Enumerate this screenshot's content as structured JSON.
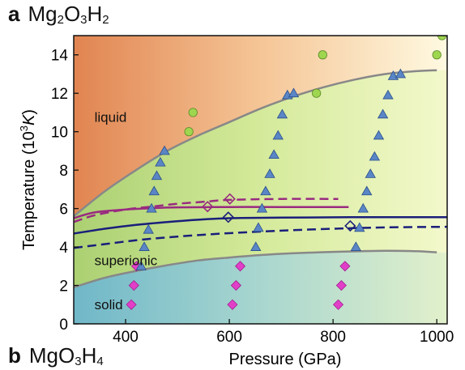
{
  "panels": {
    "a": {
      "letter": "a",
      "formula": {
        "p1": "Mg",
        "s1": "2",
        "p2": "O",
        "s2": "3",
        "p3": "H",
        "s3": "2"
      }
    },
    "b": {
      "letter": "b",
      "formula": {
        "p1": "MgO",
        "s1": "3",
        "p2": "H",
        "s2": "4"
      }
    }
  },
  "chart_data": {
    "type": "scatter",
    "title": "",
    "xlabel": "Pressure (GPa)",
    "ylabel_main": "Temperature (10",
    "ylabel_sup": "3",
    "ylabel_unit": "K",
    "ylabel_close": ")",
    "xlim": [
      300,
      1020
    ],
    "ylim": [
      0,
      15
    ],
    "xticks": [
      400,
      600,
      800,
      1000
    ],
    "yticks": [
      0,
      2,
      4,
      6,
      8,
      10,
      12,
      14
    ],
    "grid": false,
    "regions": [
      {
        "name": "liquid",
        "label": "liquid",
        "colors": [
          "#e0824e",
          "#f5c596",
          "#fffbe3"
        ]
      },
      {
        "name": "superionic",
        "label": "superionic",
        "colors": [
          "#a9cf70",
          "#d4ea9a",
          "#f4f9cd"
        ]
      },
      {
        "name": "solid",
        "label": "solid",
        "colors": [
          "#6db6c8",
          "#a8d6cf",
          "#e3f1cb"
        ]
      }
    ],
    "boundary_color": "#888888",
    "liquid_superionic_boundary": [
      [
        300,
        5.6
      ],
      [
        360,
        6.9
      ],
      [
        420,
        8.0
      ],
      [
        480,
        9.0
      ],
      [
        540,
        9.8
      ],
      [
        600,
        10.5
      ],
      [
        660,
        11.2
      ],
      [
        720,
        11.8
      ],
      [
        780,
        12.3
      ],
      [
        840,
        12.7
      ],
      [
        900,
        13.0
      ],
      [
        960,
        13.15
      ],
      [
        1000,
        13.2
      ]
    ],
    "superionic_solid_boundary": [
      [
        300,
        1.9
      ],
      [
        360,
        2.4
      ],
      [
        420,
        2.75
      ],
      [
        480,
        3.05
      ],
      [
        540,
        3.3
      ],
      [
        600,
        3.45
      ],
      [
        660,
        3.58
      ],
      [
        720,
        3.67
      ],
      [
        780,
        3.73
      ],
      [
        840,
        3.77
      ],
      [
        900,
        3.8
      ],
      [
        960,
        3.78
      ],
      [
        1000,
        3.72
      ]
    ],
    "lines": [
      {
        "name": "purple-solid",
        "color": "#992b80",
        "dash": false,
        "points": [
          [
            300,
            5.5
          ],
          [
            340,
            5.8
          ],
          [
            400,
            5.95
          ],
          [
            450,
            6.02
          ],
          [
            500,
            6.06
          ],
          [
            600,
            6.08
          ],
          [
            700,
            6.08
          ],
          [
            830,
            6.08
          ]
        ]
      },
      {
        "name": "purple-dashed",
        "color": "#992b80",
        "dash": true,
        "points": [
          [
            300,
            5.3
          ],
          [
            340,
            5.65
          ],
          [
            400,
            5.95
          ],
          [
            450,
            6.1
          ],
          [
            500,
            6.25
          ],
          [
            550,
            6.35
          ],
          [
            600,
            6.45
          ],
          [
            700,
            6.5
          ],
          [
            810,
            6.5
          ]
        ]
      },
      {
        "name": "navy-solid",
        "color": "#1a1f7a",
        "dash": false,
        "points": [
          [
            300,
            4.7
          ],
          [
            360,
            4.95
          ],
          [
            420,
            5.15
          ],
          [
            480,
            5.3
          ],
          [
            540,
            5.42
          ],
          [
            600,
            5.5
          ],
          [
            700,
            5.53
          ],
          [
            850,
            5.55
          ],
          [
            1020,
            5.55
          ]
        ]
      },
      {
        "name": "navy-dashed",
        "color": "#1a1f7a",
        "dash": true,
        "points": [
          [
            300,
            3.95
          ],
          [
            360,
            4.15
          ],
          [
            420,
            4.35
          ],
          [
            480,
            4.5
          ],
          [
            540,
            4.62
          ],
          [
            600,
            4.72
          ],
          [
            700,
            4.85
          ],
          [
            800,
            4.95
          ],
          [
            900,
            5.02
          ],
          [
            1020,
            5.05
          ]
        ]
      }
    ],
    "triangles": {
      "color": "#5a86c6",
      "points": [
        [
          430,
          3.0
        ],
        [
          436,
          4.0
        ],
        [
          444,
          4.9
        ],
        [
          450,
          6.0
        ],
        [
          455,
          6.9
        ],
        [
          460,
          7.7
        ],
        [
          467,
          8.4
        ],
        [
          475,
          9.0
        ],
        [
          651,
          4.0
        ],
        [
          656,
          5.0
        ],
        [
          663,
          6.0
        ],
        [
          670,
          6.9
        ],
        [
          678,
          7.8
        ],
        [
          686,
          8.8
        ],
        [
          694,
          9.8
        ],
        [
          702,
          10.9
        ],
        [
          712,
          11.9
        ],
        [
          724,
          12.0
        ],
        [
          844,
          4.0
        ],
        [
          851,
          5.0
        ],
        [
          858,
          6.0
        ],
        [
          865,
          6.9
        ],
        [
          872,
          7.8
        ],
        [
          880,
          8.7
        ],
        [
          888,
          9.8
        ],
        [
          896,
          10.9
        ],
        [
          906,
          11.9
        ],
        [
          916,
          12.9
        ],
        [
          930,
          13.0
        ]
      ]
    },
    "circles": {
      "color": "#9fd64f",
      "points": [
        [
          522,
          10.0
        ],
        [
          530,
          11.0
        ],
        [
          768,
          12.0
        ],
        [
          780,
          14.0
        ],
        [
          1000,
          14.0
        ],
        [
          1010,
          15.0
        ]
      ]
    },
    "magenta_diamonds": {
      "color": "#e23fc9",
      "points": [
        [
          411,
          1.0
        ],
        [
          416,
          2.0
        ],
        [
          421,
          3.0
        ],
        [
          606,
          1.0
        ],
        [
          613,
          2.0
        ],
        [
          621,
          3.0
        ],
        [
          810,
          1.0
        ],
        [
          816,
          2.0
        ],
        [
          823,
          3.0
        ]
      ]
    },
    "open_diamonds": {
      "points": [
        {
          "x": 558,
          "y": 6.1,
          "color": "#992b80"
        },
        {
          "x": 601,
          "y": 6.5,
          "color": "#992b80"
        },
        {
          "x": 598,
          "y": 5.55,
          "color": "#1a1f7a"
        },
        {
          "x": 833,
          "y": 5.1,
          "color": "#1a1f7a"
        }
      ]
    },
    "region_labels": [
      {
        "name": "liquid",
        "text": "liquid",
        "x": 340,
        "y": 10.7
      },
      {
        "name": "superionic",
        "text": "superionic",
        "x": 340,
        "y": 3.25
      },
      {
        "name": "solid",
        "text": "solid",
        "x": 340,
        "y": 0.95
      }
    ]
  }
}
